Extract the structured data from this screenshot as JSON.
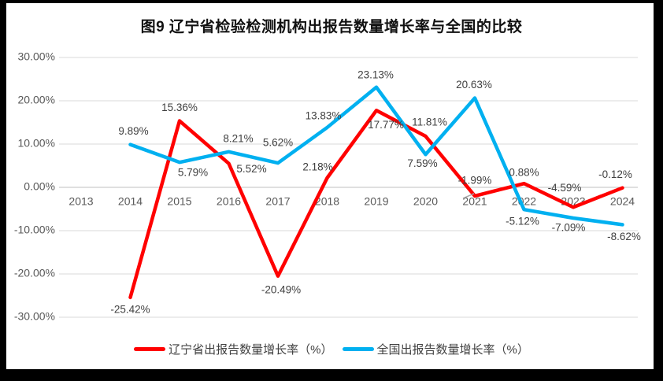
{
  "chart_data": {
    "type": "line",
    "title": "图9  辽宁省检验检测机构出报告数量增长率与全国的比较",
    "categories": [
      "2013",
      "2014",
      "2015",
      "2016",
      "2017",
      "2018",
      "2019",
      "2020",
      "2021",
      "2022",
      "2023",
      "2024"
    ],
    "series": [
      {
        "name": "辽宁省出报告数量增长率（%）",
        "color": "#FF0000",
        "values": [
          null,
          -25.42,
          15.36,
          5.52,
          -20.49,
          2.18,
          17.77,
          11.81,
          -1.99,
          0.88,
          -4.59,
          -0.12
        ],
        "label_offsets": [
          null,
          [
            0,
            16
          ],
          [
            0,
            -16
          ],
          [
            29,
            8
          ],
          [
            4,
            18
          ],
          [
            -12,
            -13
          ],
          [
            12,
            19
          ],
          [
            5,
            -17
          ],
          [
            0,
            -19
          ],
          [
            0,
            -13
          ],
          [
            -11,
            -24
          ],
          [
            -9,
            -16
          ]
        ],
        "leader_indices": [
          8
        ]
      },
      {
        "name": "全国出报告数量增长率（%）",
        "color": "#00B0F0",
        "values": [
          null,
          9.89,
          5.79,
          8.21,
          5.62,
          13.83,
          23.13,
          7.59,
          20.63,
          -5.12,
          -7.09,
          -8.62
        ],
        "label_offsets": [
          null,
          [
            4,
            -16
          ],
          [
            17,
            14
          ],
          [
            12,
            -16
          ],
          [
            0,
            -25
          ],
          [
            -5,
            -14
          ],
          [
            -1,
            -15
          ],
          [
            -4,
            12
          ],
          [
            -1,
            -16
          ],
          [
            -2,
            16
          ],
          [
            -6,
            13
          ],
          [
            2,
            16
          ]
        ],
        "leader_indices": []
      }
    ],
    "ylim": [
      -30,
      30
    ],
    "ytick_values": [
      30,
      20,
      10,
      0,
      -10,
      -20,
      -30
    ],
    "ytick_labels": [
      "30.00%",
      "20.00%",
      "10.00%",
      "0.00%",
      "-10.00%",
      "-20.00%",
      "-30.00%"
    ],
    "grid": true,
    "legend_position": "bottom",
    "colors": {
      "grid": "#D9D9D9",
      "zero_axis": "#BFBFBF",
      "axis_text": "#595959",
      "label_text": "#404040",
      "leader": "#A6A6A6"
    }
  }
}
